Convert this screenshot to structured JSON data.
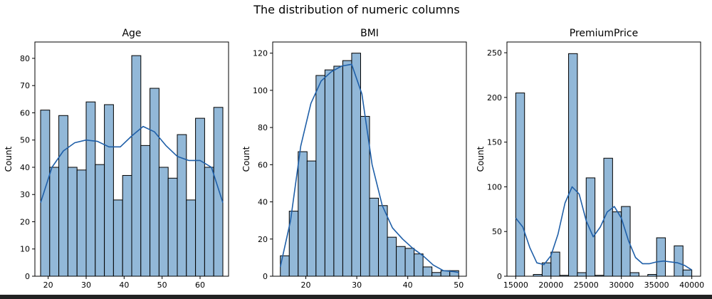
{
  "figure": {
    "suptitle": "The distribution of numeric columns",
    "colors": {
      "bar_fill": "#92b8d8",
      "bar_edge": "#000000",
      "kde_line": "#1f5fa8"
    }
  },
  "chart_data": [
    {
      "type": "bar",
      "title": "Age",
      "xlabel": "",
      "ylabel": "Count",
      "bin_edges": [
        18,
        20.4,
        22.8,
        25.2,
        27.6,
        30,
        32.4,
        34.8,
        37.2,
        39.6,
        42,
        44.4,
        46.8,
        49.2,
        51.6,
        54,
        56.4,
        58.8,
        61.2,
        63.6,
        66
      ],
      "values": [
        61,
        40,
        59,
        40,
        39,
        64,
        41,
        63,
        28,
        37,
        81,
        48,
        69,
        40,
        36,
        52,
        28,
        58,
        40,
        62
      ],
      "kde": {
        "x": [
          18,
          21,
          24,
          27,
          30,
          33,
          36,
          39,
          42,
          45,
          48,
          51,
          54,
          57,
          60,
          63,
          66
        ],
        "y": [
          27,
          40,
          46,
          49,
          50,
          49.5,
          47.5,
          47.5,
          51.5,
          55,
          53,
          48,
          44,
          42.5,
          42.5,
          40,
          27
        ]
      },
      "xlim": [
        16.5,
        67.5
      ],
      "ylim": [
        0,
        86
      ],
      "xticks": [
        20,
        30,
        40,
        50,
        60
      ],
      "yticks": [
        0,
        10,
        20,
        30,
        40,
        50,
        60,
        70,
        80
      ]
    },
    {
      "type": "bar",
      "title": "BMI",
      "xlabel": "",
      "ylabel": "Count",
      "bin_edges": [
        15,
        16.75,
        18.5,
        20.25,
        22,
        23.75,
        25.5,
        27.25,
        29,
        30.75,
        32.5,
        34.25,
        36,
        37.75,
        39.5,
        41.25,
        43,
        44.75,
        46.5,
        48.25,
        50
      ],
      "values": [
        11,
        35,
        67,
        62,
        108,
        111,
        113,
        116,
        120,
        86,
        42,
        38,
        21,
        16,
        15,
        12,
        5,
        2,
        3,
        3
      ],
      "kde": {
        "x": [
          15,
          17,
          19,
          21,
          23,
          25,
          27,
          29,
          31,
          33,
          35,
          37,
          39,
          41,
          43,
          45,
          47,
          49,
          50
        ],
        "y": [
          5,
          30,
          70,
          93,
          105,
          110,
          113,
          114,
          98,
          60,
          38,
          26,
          20,
          15,
          11,
          6,
          3,
          2.5,
          2
        ]
      },
      "xlim": [
        13.5,
        51.5
      ],
      "ylim": [
        0,
        126
      ],
      "xticks": [
        20,
        30,
        40,
        50
      ],
      "yticks": [
        0,
        20,
        40,
        60,
        80,
        100,
        120
      ]
    },
    {
      "type": "bar",
      "title": "PremiumPrice",
      "xlabel": "",
      "ylabel": "Count",
      "bin_edges": [
        15000,
        16250,
        17500,
        18750,
        20000,
        21250,
        22500,
        23750,
        25000,
        26250,
        27500,
        28750,
        30000,
        31250,
        32500,
        33750,
        35000,
        36250,
        37500,
        38750,
        40000
      ],
      "values": [
        205,
        0,
        2,
        15,
        27,
        1,
        249,
        4,
        110,
        1,
        132,
        72,
        78,
        4,
        0,
        2,
        43,
        0,
        34,
        7
      ],
      "kde": {
        "x": [
          15000,
          16000,
          17000,
          18000,
          19000,
          20000,
          21000,
          22000,
          23000,
          24000,
          25000,
          26000,
          27000,
          28000,
          29000,
          30000,
          31000,
          32000,
          33000,
          34000,
          35000,
          36000,
          37000,
          38000,
          39000,
          40000
        ],
        "y": [
          65,
          55,
          32,
          15,
          13,
          23,
          47,
          82,
          100,
          92,
          62,
          44,
          55,
          72,
          78,
          65,
          40,
          21,
          14,
          14,
          16,
          17,
          16,
          15,
          12,
          7
        ]
      },
      "xlim": [
        13750,
        41250
      ],
      "ylim": [
        0,
        262
      ],
      "xticks": [
        15000,
        20000,
        25000,
        30000,
        35000,
        40000
      ],
      "yticks": [
        0,
        50,
        100,
        150,
        200,
        250
      ]
    }
  ]
}
